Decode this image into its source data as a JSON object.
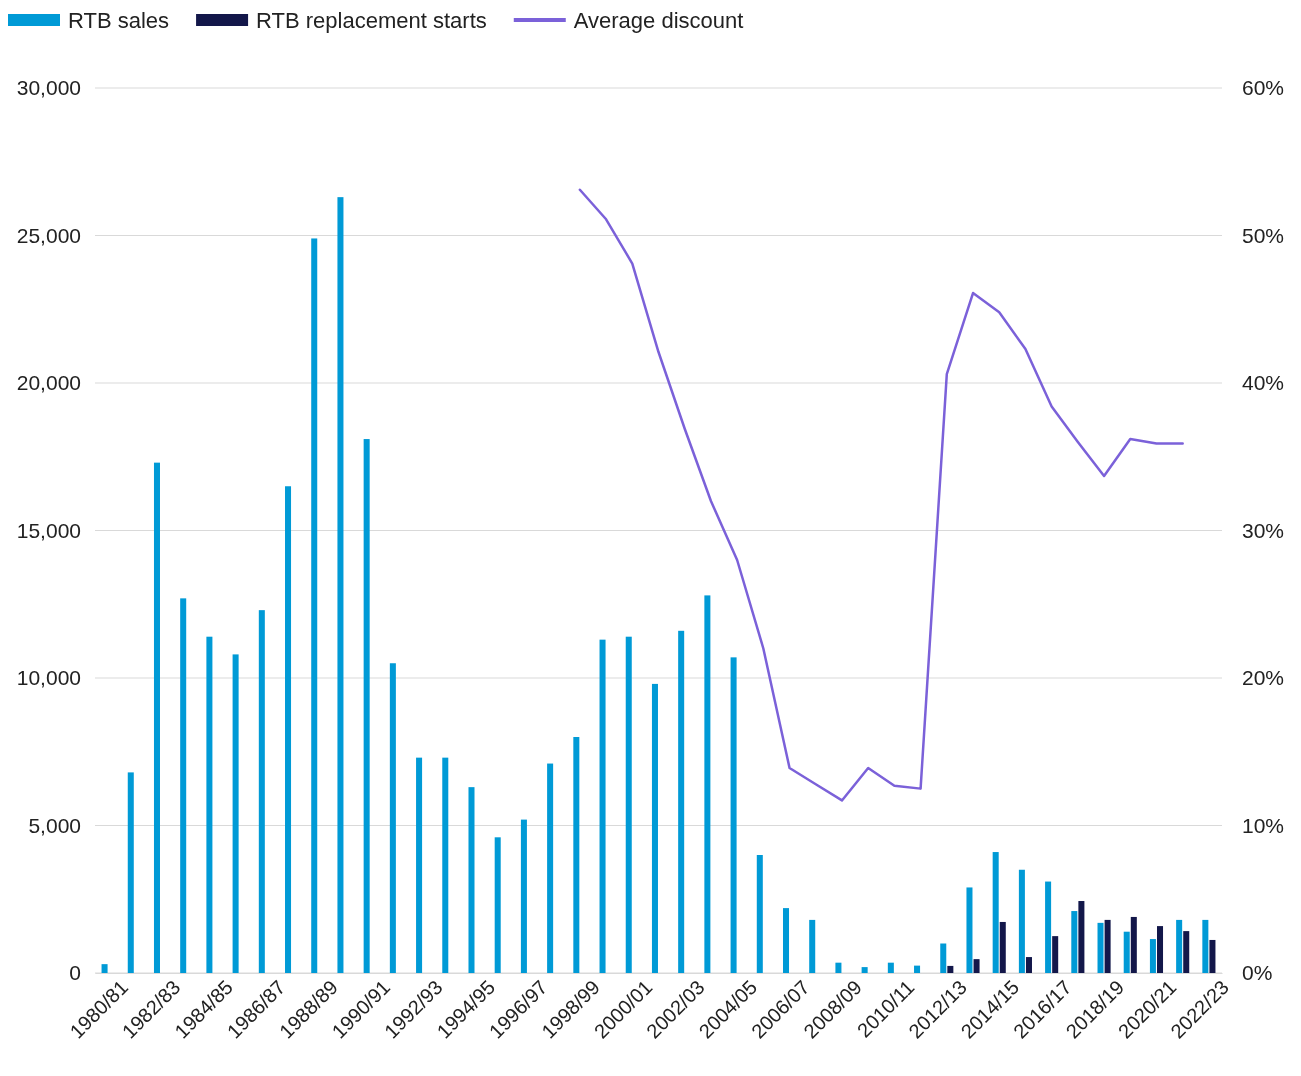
{
  "chart_data": {
    "type": "bar",
    "categories": [
      "1980/81",
      null,
      "1982/83",
      null,
      "1984/85",
      null,
      "1986/87",
      null,
      "1988/89",
      null,
      "1990/91",
      null,
      "1992/93",
      null,
      "1994/95",
      null,
      "1996/97",
      null,
      "1998/99",
      null,
      "2000/01",
      null,
      "2002/03",
      null,
      "2004/05",
      null,
      "2006/07",
      null,
      "2008/09",
      null,
      "2010/11",
      null,
      "2012/13",
      null,
      "2014/15",
      null,
      "2016/17",
      null,
      "2018/19",
      null,
      "2020/21",
      null,
      "2022/23"
    ],
    "series": [
      {
        "name": "RTB sales",
        "color": "#009ad6",
        "values": [
          300,
          6800,
          17300,
          12700,
          11400,
          10800,
          12300,
          16500,
          24900,
          26300,
          18100,
          10500,
          7300,
          7300,
          6300,
          4600,
          5200,
          7100,
          8000,
          11300,
          11400,
          9800,
          11600,
          12800,
          10700,
          4000,
          2200,
          1800,
          350,
          200,
          350,
          250,
          1000,
          2900,
          4100,
          3500,
          3100,
          2100,
          1700,
          1400,
          1150,
          1800,
          1800
        ]
      },
      {
        "name": "RTB replacement starts",
        "color": "#13174a",
        "values": [
          null,
          null,
          null,
          null,
          null,
          null,
          null,
          null,
          null,
          null,
          null,
          null,
          null,
          null,
          null,
          null,
          null,
          null,
          null,
          null,
          null,
          null,
          null,
          null,
          null,
          null,
          null,
          null,
          null,
          null,
          null,
          null,
          240,
          470,
          1730,
          540,
          1250,
          2440,
          1800,
          1900,
          1590,
          1420,
          1120
        ]
      },
      {
        "name": "Average discount",
        "type": "line",
        "axis": "y2",
        "color": "#7b61d9",
        "values": [
          null,
          null,
          null,
          null,
          null,
          null,
          null,
          null,
          null,
          null,
          null,
          null,
          null,
          null,
          null,
          null,
          null,
          null,
          53.1,
          51.1,
          48.1,
          42.1,
          36.9,
          32.0,
          28.0,
          22.0,
          13.9,
          12.8,
          11.7,
          13.9,
          12.7,
          12.5,
          40.6,
          46.1,
          44.8,
          42.3,
          38.4,
          36.0,
          33.7,
          36.2,
          35.9,
          35.9,
          null
        ]
      }
    ],
    "ylim": [
      0,
      30000
    ],
    "yticks": [
      0,
      {
        "value": 5000,
        "label": "5,000"
      },
      {
        "value": 10000,
        "label": "10,000"
      },
      {
        "value": 15000,
        "label": "15,000"
      },
      {
        "value": 20000,
        "label": "20,000"
      },
      {
        "value": 25000,
        "label": "25,000"
      },
      {
        "value": 30000,
        "label": "30,000"
      }
    ],
    "y2lim": [
      0,
      60
    ],
    "y2ticks": [
      {
        "value": 0,
        "label": "0%"
      },
      {
        "value": 10,
        "label": "10%"
      },
      {
        "value": 20,
        "label": "20%"
      },
      {
        "value": 30,
        "label": "30%"
      },
      {
        "value": 40,
        "label": "40%"
      },
      {
        "value": 50,
        "label": "50%"
      },
      {
        "value": 60,
        "label": "60%"
      }
    ],
    "grid": "y",
    "legend": "top left"
  }
}
